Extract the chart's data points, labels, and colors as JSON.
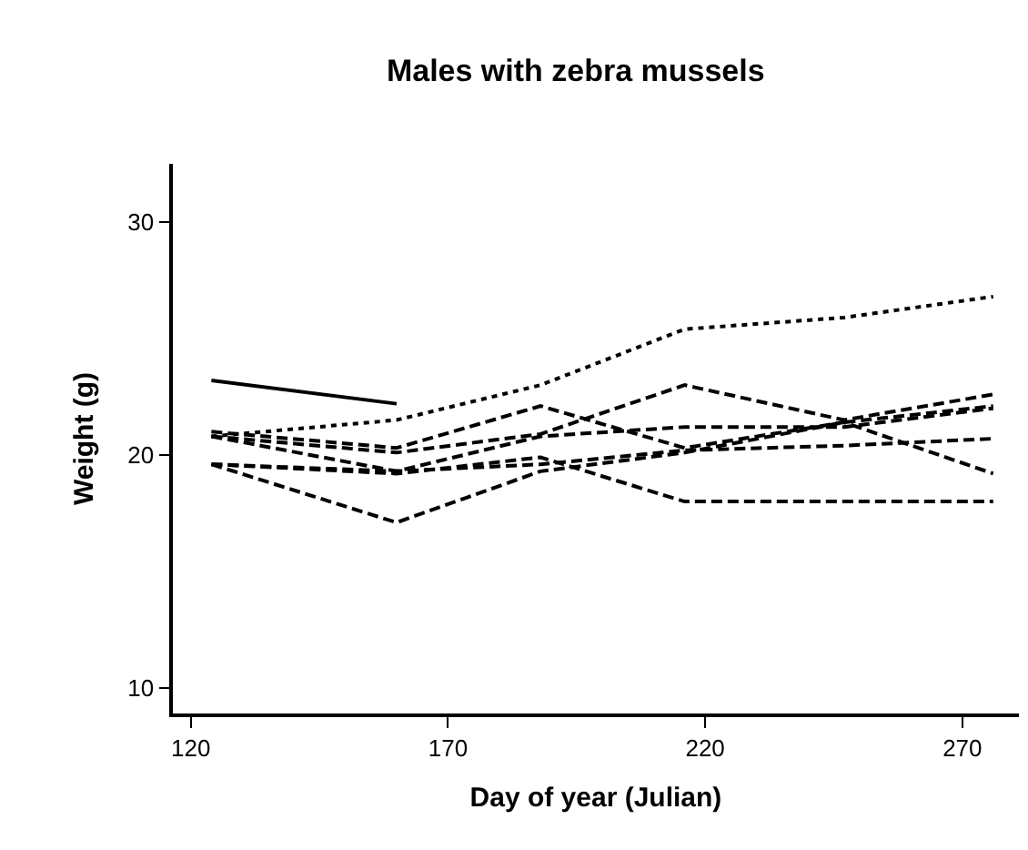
{
  "chart_data": {
    "type": "line",
    "title": "Males with zebra mussels",
    "xlabel": "Day of year (Julian)",
    "ylabel": "Weight (g)",
    "xlim": [
      116.5,
      281
    ],
    "xticks": [
      120,
      170,
      220,
      270
    ],
    "ylim": [
      8.9,
      32.5
    ],
    "yticks": [
      10,
      20,
      30
    ],
    "marker": "none",
    "series": [
      {
        "color": "#000000",
        "line_style": "solid",
        "x": [
          124,
          160
        ],
        "values": [
          23.2,
          22.2
        ]
      },
      {
        "color": "#000000",
        "line_style": "dotted",
        "x": [
          124,
          160,
          188,
          216,
          247,
          276
        ],
        "values": [
          20.8,
          21.5,
          23.0,
          25.4,
          25.9,
          26.8
        ]
      },
      {
        "color": "#000000",
        "line_style": "dashed",
        "x": [
          124,
          160,
          188,
          216,
          247,
          276
        ],
        "values": [
          19.6,
          17.1,
          19.3,
          20.1,
          21.4,
          22.1
        ]
      },
      {
        "color": "#000000",
        "line_style": "dashed",
        "x": [
          124,
          160,
          188,
          216,
          247,
          276
        ],
        "values": [
          19.6,
          19.2,
          19.9,
          18.0,
          18.0,
          18.0
        ]
      },
      {
        "color": "#000000",
        "line_style": "dashed",
        "x": [
          124,
          160,
          188,
          216,
          247,
          276
        ],
        "values": [
          20.8,
          20.1,
          20.9,
          23.0,
          21.5,
          22.6
        ]
      },
      {
        "color": "#000000",
        "line_style": "dashed",
        "x": [
          124,
          160,
          188,
          216,
          247,
          276
        ],
        "values": [
          21.0,
          20.3,
          22.1,
          20.3,
          21.4,
          19.2
        ]
      },
      {
        "color": "#000000",
        "line_style": "dashed",
        "x": [
          124,
          160,
          188,
          216,
          247,
          276
        ],
        "values": [
          20.8,
          19.3,
          20.8,
          21.2,
          21.2,
          22.0
        ]
      },
      {
        "color": "#000000",
        "line_style": "dashed",
        "x": [
          124,
          160,
          188,
          216,
          247,
          276
        ],
        "values": [
          19.6,
          19.3,
          19.6,
          20.2,
          20.4,
          20.7
        ]
      }
    ]
  }
}
